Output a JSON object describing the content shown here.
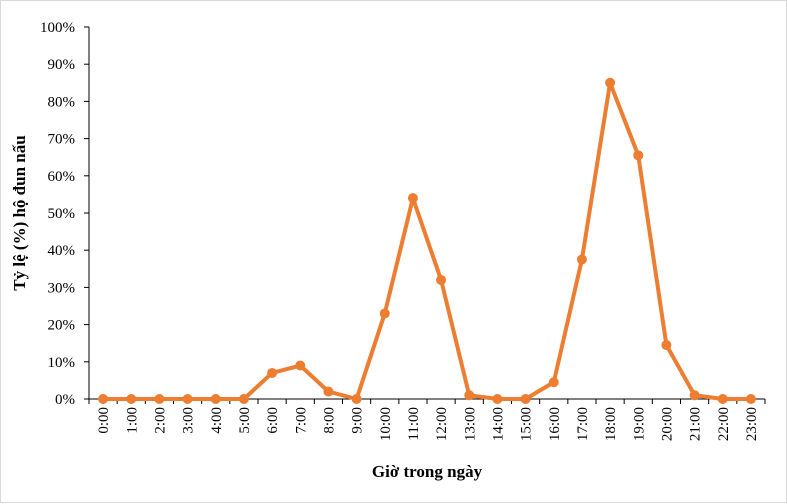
{
  "chart_data": {
    "type": "line",
    "xlabel": "Giờ trong ngày",
    "ylabel": "Tỷ lệ (%) hộ đun nấu",
    "ylim": [
      0,
      100
    ],
    "yticks": [
      "0%",
      "10%",
      "20%",
      "30%",
      "40%",
      "50%",
      "60%",
      "70%",
      "80%",
      "90%",
      "100%"
    ],
    "grid": false,
    "legend": "none",
    "categories": [
      "0:00",
      "1:00",
      "2:00",
      "3:00",
      "4:00",
      "5:00",
      "6:00",
      "7:00",
      "8:00",
      "9:00",
      "10:00",
      "11:00",
      "12:00",
      "13:00",
      "14:00",
      "15:00",
      "16:00",
      "17:00",
      "18:00",
      "19:00",
      "20:00",
      "21:00",
      "22:00",
      "23:00"
    ],
    "series": [
      {
        "values": [
          0,
          0,
          0,
          0,
          0,
          0,
          7,
          9,
          2,
          0,
          23,
          54,
          32,
          1,
          0,
          0,
          4.5,
          37.5,
          85,
          65.5,
          14.5,
          1,
          0,
          0
        ],
        "color": "#ed7d31"
      }
    ]
  }
}
